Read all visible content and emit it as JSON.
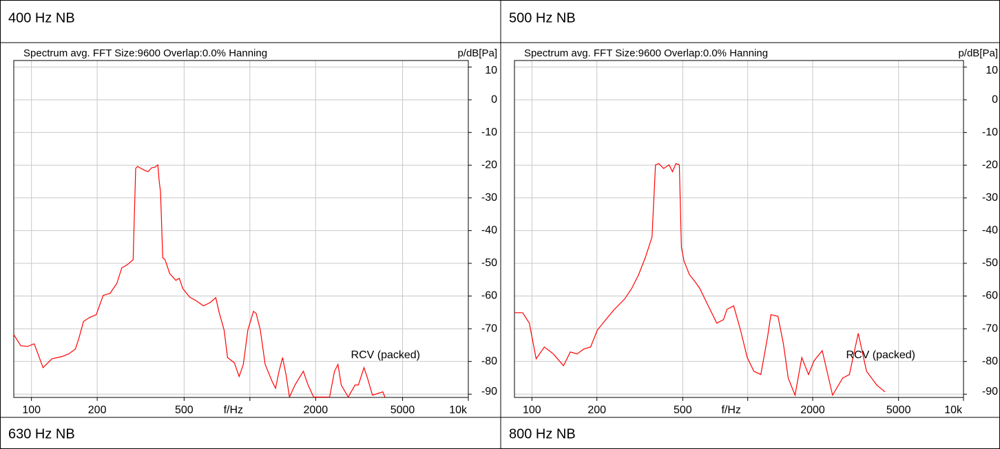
{
  "chart_data": [
    {
      "type": "line",
      "title": "400 Hz NB",
      "subtitle": "Spectrum avg.  FFT Size:9600  Overlap:0.0%  Hanning",
      "y_label": "p/dB[Pa]",
      "x_label": "f/Hz",
      "annotation": "RCV (packed)",
      "log_x": true,
      "grid": true,
      "xlim": [
        83,
        10000
      ],
      "xticks": [
        100,
        200,
        500,
        1000,
        2000,
        5000,
        {
          "value": 10000,
          "label": "10k"
        }
      ],
      "ylim": [
        -91,
        12
      ],
      "yticks": [
        10,
        0,
        -10,
        -20,
        -30,
        -40,
        -50,
        -60,
        -70,
        -80,
        -90
      ],
      "x": [
        83,
        89.4,
        96,
        103,
        113,
        124,
        138,
        148,
        159,
        165,
        173,
        184,
        198,
        213,
        229,
        246,
        259,
        275,
        292,
        300,
        306,
        318,
        330,
        342,
        355,
        368,
        379,
        384,
        390,
        399,
        409,
        429,
        458,
        475,
        493,
        530,
        570,
        613,
        658,
        698,
        724,
        762,
        790,
        849,
        893,
        933,
        979,
        1038,
        1068,
        1116,
        1175,
        1264,
        1311,
        1360,
        1411,
        1464,
        1518,
        1609,
        1756,
        1847,
        1958,
        2188,
        2318,
        2440,
        2530,
        2620,
        2820,
        3030,
        3140,
        3330,
        3455,
        3640,
        4060,
        4150
      ],
      "series": [
        {
          "name": "RCV (packed)",
          "color": "#ff0000",
          "values": [
            -71.8,
            -75.2,
            -75.4,
            -74.6,
            -81.9,
            -79.2,
            -78.5,
            -77.7,
            -76.2,
            -72.9,
            -67.8,
            -66.6,
            -65.7,
            -59.8,
            -59.2,
            -56.1,
            -51.4,
            -50.4,
            -48.9,
            -21,
            -20.4,
            -21,
            -21.6,
            -22,
            -20.8,
            -20.6,
            -19.9,
            -24.6,
            -28.3,
            -48.3,
            -48.9,
            -53.1,
            -55.2,
            -54.6,
            -57.7,
            -60.3,
            -61.5,
            -63,
            -62,
            -60.5,
            -65.1,
            -70.4,
            -78.8,
            -80.4,
            -84.6,
            -80.9,
            -70.4,
            -64.7,
            -65.3,
            -70.4,
            -80.9,
            -86.1,
            -88.2,
            -83,
            -78.8,
            -84,
            -90.9,
            -87.2,
            -83,
            -87.2,
            -90.9,
            -90.9,
            -90.9,
            -83,
            -80.9,
            -87.2,
            -90.9,
            -87.2,
            -87.2,
            -81.9,
            -85.1,
            -90.3,
            -89.3,
            -90.9
          ]
        }
      ]
    },
    {
      "type": "line",
      "title": "500 Hz NB",
      "subtitle": "Spectrum avg.  FFT Size:9600  Overlap:0.0%  Hanning",
      "y_label": "p/dB[Pa]",
      "x_label": "f/Hz",
      "annotation": "RCV (packed)",
      "log_x": true,
      "grid": true,
      "xlim": [
        83,
        10000
      ],
      "xticks": [
        100,
        200,
        500,
        1000,
        2000,
        5000,
        {
          "value": 10000,
          "label": "10k"
        }
      ],
      "ylim": [
        -91,
        12
      ],
      "yticks": [
        10,
        0,
        -10,
        -20,
        -30,
        -40,
        -50,
        -60,
        -70,
        -80,
        -90
      ],
      "x": [
        83,
        90.6,
        97.3,
        104.6,
        114.2,
        125.6,
        140.1,
        150.6,
        161.9,
        174,
        187,
        201,
        224,
        241,
        269,
        290,
        312,
        335,
        360,
        374,
        387,
        408,
        432,
        448,
        465,
        482,
        493,
        507,
        537,
        570,
        600,
        645,
        719,
        773,
        801,
        861,
        926,
        995,
        1068,
        1150,
        1236,
        1281,
        1381,
        1464,
        1541,
        1657,
        1781,
        1914,
        2030,
        2215,
        2474,
        2754,
        2960,
        3254,
        3554,
        3962,
        4326
      ],
      "series": [
        {
          "name": "RCV (packed)",
          "color": "#ff0000",
          "values": [
            -65.1,
            -65.1,
            -68.3,
            -79.2,
            -75.6,
            -77.7,
            -81.3,
            -77.1,
            -77.7,
            -76.2,
            -75.6,
            -70.4,
            -66.6,
            -64.1,
            -60.9,
            -57.7,
            -53.5,
            -48.3,
            -42,
            -19.9,
            -19.5,
            -21,
            -19.9,
            -22,
            -19.5,
            -19.9,
            -45.1,
            -49.3,
            -53.5,
            -55.6,
            -57.7,
            -62,
            -68.3,
            -67.2,
            -64.1,
            -63,
            -70.4,
            -78.8,
            -83,
            -84,
            -72.5,
            -65.7,
            -66.2,
            -74.6,
            -85.1,
            -90.3,
            -78.8,
            -84,
            -79.8,
            -76.7,
            -90.3,
            -85.1,
            -84,
            -71.4,
            -83,
            -87.2,
            -89.3
          ]
        }
      ]
    }
  ],
  "extra_panels": [
    {
      "title": "630 Hz NB"
    },
    {
      "title": "800 Hz NB"
    }
  ]
}
